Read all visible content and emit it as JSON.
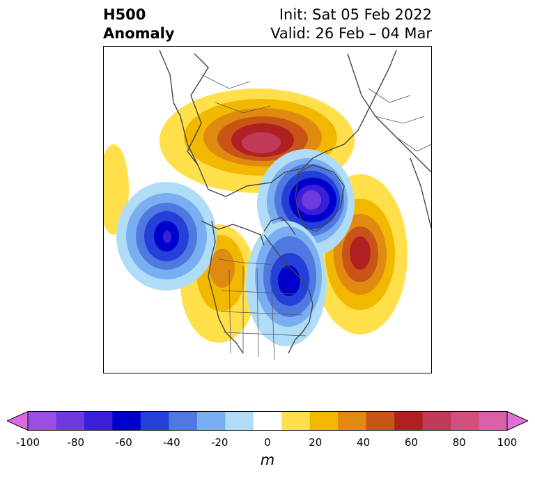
{
  "title": {
    "left_line1": "H500",
    "left_line2": "Anomaly",
    "right_line1": "Init: Sat 05 Feb 2022",
    "right_line2": "Valid: 26 Feb – 04 Mar"
  },
  "colorbar": {
    "unit": "m",
    "tick_labels": [
      "-100",
      "-80",
      "-60",
      "-40",
      "-20",
      "0",
      "20",
      "40",
      "60",
      "80",
      "100"
    ],
    "colors": [
      "#d86be0",
      "#9b4fe0",
      "#6e3ae0",
      "#3b1fd8",
      "#0000cc",
      "#2440d8",
      "#4f78e0",
      "#79aef0",
      "#b0dcf8",
      "#ffffff",
      "#ffe04a",
      "#f2b800",
      "#e08a10",
      "#c85418",
      "#b02020",
      "#c03a5a",
      "#d0507e",
      "#d860a8",
      "#e070d8"
    ]
  },
  "map": {
    "colors": {
      "coast": "#444444",
      "border": "#555555"
    }
  }
}
